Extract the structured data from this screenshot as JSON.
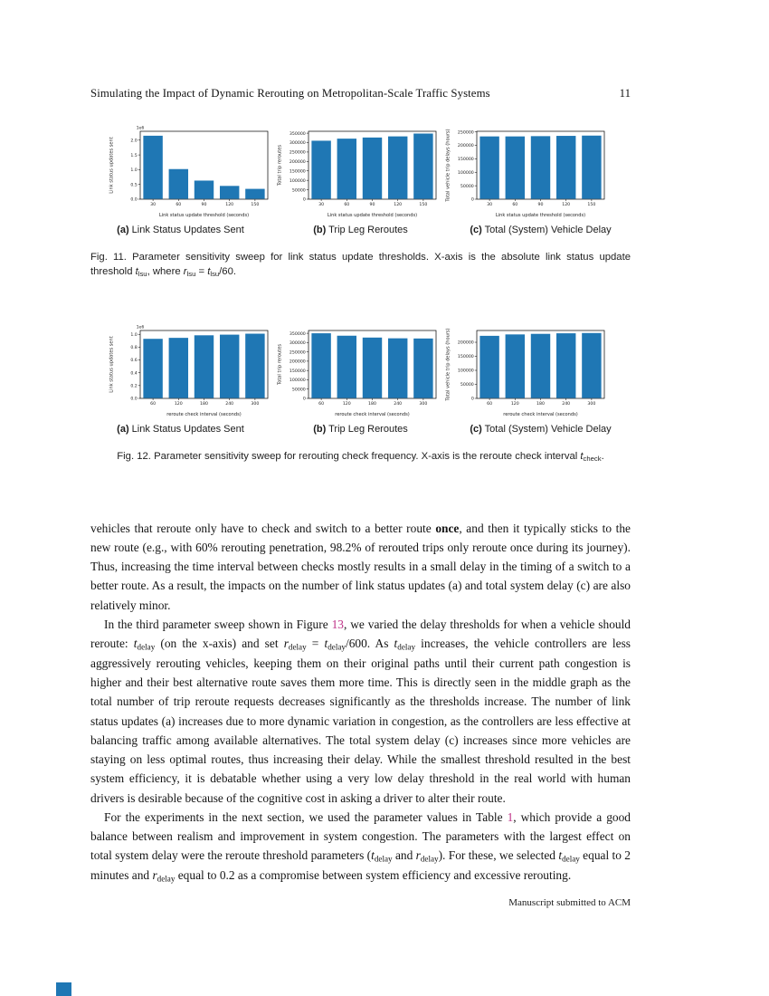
{
  "page": {
    "header_title": "Simulating the Impact of Dynamic Rerouting on Metropolitan-Scale Traffic Systems",
    "page_number": "11",
    "footer": "Manuscript submitted to ACM"
  },
  "colors": {
    "bar": "#1f77b4",
    "link": "#bf3287",
    "axis": "#222222"
  },
  "chart_data": [
    {
      "type": "bar",
      "figure": "Fig. 11 (a)",
      "categories": [
        "30",
        "60",
        "90",
        "120",
        "150"
      ],
      "values": [
        2150000,
        1020000,
        630000,
        450000,
        350000
      ],
      "title": "",
      "xlabel": "Link status update threshold (seconds)",
      "ylabel": "Link status updates sent",
      "ylim": [
        0,
        2300000
      ],
      "yticks": [
        0,
        500000,
        1000000,
        1500000,
        2000000
      ],
      "y_offset_label": "1e6",
      "y_tick_divisor": 1000000
    },
    {
      "type": "bar",
      "figure": "Fig. 11 (b)",
      "categories": [
        "30",
        "60",
        "90",
        "120",
        "150"
      ],
      "values": [
        310000,
        321000,
        327000,
        333000,
        348000
      ],
      "title": "",
      "xlabel": "Link status update threshold (seconds)",
      "ylabel": "Total trip reroutes",
      "ylim": [
        0,
        360000
      ],
      "yticks": [
        0,
        50000,
        100000,
        150000,
        200000,
        250000,
        300000,
        350000
      ],
      "y_offset_label": "",
      "y_tick_divisor": 1
    },
    {
      "type": "bar",
      "figure": "Fig. 11 (c)",
      "categories": [
        "30",
        "60",
        "90",
        "120",
        "150"
      ],
      "values": [
        233000,
        233000,
        234000,
        235000,
        236000
      ],
      "title": "",
      "xlabel": "Link status update threshold (seconds)",
      "ylabel": "Total vehicle trip delays (hours)",
      "ylim": [
        0,
        252000
      ],
      "yticks": [
        0,
        50000,
        100000,
        150000,
        200000,
        250000
      ],
      "y_offset_label": "",
      "y_tick_divisor": 1
    },
    {
      "type": "bar",
      "figure": "Fig. 12 (a)",
      "categories": [
        "60",
        "120",
        "180",
        "240",
        "300"
      ],
      "values": [
        930000,
        945000,
        985000,
        995000,
        1010000
      ],
      "title": "",
      "xlabel": "reroute check interval (seconds)",
      "ylabel": "Link status updates sent",
      "ylim": [
        0,
        1060000
      ],
      "yticks": [
        0,
        200000,
        400000,
        600000,
        800000,
        1000000
      ],
      "y_offset_label": "1e6",
      "y_tick_divisor": 1000000
    },
    {
      "type": "bar",
      "figure": "Fig. 12 (b)",
      "categories": [
        "60",
        "120",
        "180",
        "240",
        "300"
      ],
      "values": [
        350000,
        337000,
        327000,
        323000,
        322000
      ],
      "title": "",
      "xlabel": "reroute check interval (seconds)",
      "ylabel": "Total trip reroutes",
      "ylim": [
        0,
        365000
      ],
      "yticks": [
        0,
        50000,
        100000,
        150000,
        200000,
        250000,
        300000,
        350000
      ],
      "y_offset_label": "",
      "y_tick_divisor": 1
    },
    {
      "type": "bar",
      "figure": "Fig. 12 (c)",
      "categories": [
        "60",
        "120",
        "180",
        "240",
        "300"
      ],
      "values": [
        223000,
        228000,
        230000,
        232000,
        233000
      ],
      "title": "",
      "xlabel": "reroute check interval (seconds)",
      "ylabel": "Total vehicle trip delays (hours)",
      "ylim": [
        0,
        242000
      ],
      "yticks": [
        0,
        50000,
        100000,
        150000,
        200000
      ],
      "y_offset_label": "",
      "y_tick_divisor": 1
    }
  ],
  "figures": [
    {
      "subcaptions": [
        {
          "prefix": "(a)",
          "text": " Link Status Updates Sent"
        },
        {
          "prefix": "(b)",
          "text": " Trip Leg Reroutes"
        },
        {
          "prefix": "(c)",
          "text": " Total (System) Vehicle Delay"
        }
      ],
      "caption": [
        {
          "t": "text",
          "v": "Fig. 11.  Parameter sensitivity sweep for link status update thresholds. X-axis is the absolute link status update threshold "
        },
        {
          "t": "var",
          "v": "t"
        },
        {
          "t": "sub",
          "v": "lsu"
        },
        {
          "t": "text",
          "v": ", where "
        },
        {
          "t": "var",
          "v": "r"
        },
        {
          "t": "sub",
          "v": "lsu"
        },
        {
          "t": "text",
          "v": " = "
        },
        {
          "t": "var",
          "v": "t"
        },
        {
          "t": "sub",
          "v": "lsu"
        },
        {
          "t": "text",
          "v": "/60."
        }
      ]
    },
    {
      "subcaptions": [
        {
          "prefix": "(a)",
          "text": " Link Status Updates Sent"
        },
        {
          "prefix": "(b)",
          "text": " Trip Leg Reroutes"
        },
        {
          "prefix": "(c)",
          "text": " Total (System) Vehicle Delay"
        }
      ],
      "caption": [
        {
          "t": "text",
          "v": "Fig. 12.  Parameter sensitivity sweep for rerouting check frequency. X-axis is the reroute check interval "
        },
        {
          "t": "var",
          "v": "t"
        },
        {
          "t": "sub",
          "v": "check"
        },
        {
          "t": "text",
          "v": "."
        }
      ]
    }
  ],
  "body": {
    "paragraphs": [
      {
        "indent": false,
        "segments": [
          {
            "t": "text",
            "v": "vehicles that reroute only have to check and switch to a better route "
          },
          {
            "t": "bold",
            "v": "once"
          },
          {
            "t": "text",
            "v": ", and then it typically sticks to the new route (e.g., with 60% rerouting penetration, 98.2% of rerouted trips only reroute once during its journey). Thus, increasing the time interval between checks mostly results in a small delay in the timing of a switch to a better route. As a result, the impacts on the number of link status updates (a) and total system delay (c) are also relatively minor."
          }
        ]
      },
      {
        "indent": true,
        "segments": [
          {
            "t": "text",
            "v": "In the third parameter sweep shown in Figure "
          },
          {
            "t": "link",
            "v": "13"
          },
          {
            "t": "text",
            "v": ", we varied the delay thresholds for when a vehicle should reroute: "
          },
          {
            "t": "var",
            "v": "t"
          },
          {
            "t": "sub",
            "v": "delay"
          },
          {
            "t": "text",
            "v": " (on the x-axis) and set "
          },
          {
            "t": "var",
            "v": "r"
          },
          {
            "t": "sub",
            "v": "delay"
          },
          {
            "t": "text",
            "v": " = "
          },
          {
            "t": "var",
            "v": "t"
          },
          {
            "t": "sub",
            "v": "delay"
          },
          {
            "t": "text",
            "v": "/600. As "
          },
          {
            "t": "var",
            "v": "t"
          },
          {
            "t": "sub",
            "v": "delay"
          },
          {
            "t": "text",
            "v": " increases, the vehicle controllers are less aggressively rerouting vehicles, keeping them on their original paths until their current path congestion is higher and their best alternative route saves them more time. This is directly seen in the middle graph as the total number of trip reroute requests decreases significantly as the thresholds increase. The number of link status updates (a) increases due to more dynamic variation in congestion, as the controllers are less effective at balancing traffic among available alternatives. The total system delay (c) increases since more vehicles are staying on less optimal routes, thus increasing their delay. While the smallest threshold resulted in the best system efficiency, it is debatable whether using a very low delay threshold in the real world with human drivers is desirable because of the cognitive cost in asking a driver to alter their route."
          }
        ]
      },
      {
        "indent": true,
        "segments": [
          {
            "t": "text",
            "v": "For the experiments in the next section, we used the parameter values in Table "
          },
          {
            "t": "link",
            "v": "1"
          },
          {
            "t": "text",
            "v": ", which provide a good balance between realism and improvement in system congestion. The parameters with the largest effect on total system delay were the reroute threshold parameters ("
          },
          {
            "t": "var",
            "v": "t"
          },
          {
            "t": "sub",
            "v": "delay"
          },
          {
            "t": "text",
            "v": " and "
          },
          {
            "t": "var",
            "v": "r"
          },
          {
            "t": "sub",
            "v": "delay"
          },
          {
            "t": "text",
            "v": "). For these, we selected "
          },
          {
            "t": "var",
            "v": "t"
          },
          {
            "t": "sub",
            "v": "delay"
          },
          {
            "t": "text",
            "v": " equal to 2 minutes and "
          },
          {
            "t": "var",
            "v": "r"
          },
          {
            "t": "sub",
            "v": "delay"
          },
          {
            "t": "text",
            "v": " equal to 0.2 as a compromise between system efficiency and excessive rerouting."
          }
        ]
      }
    ]
  }
}
